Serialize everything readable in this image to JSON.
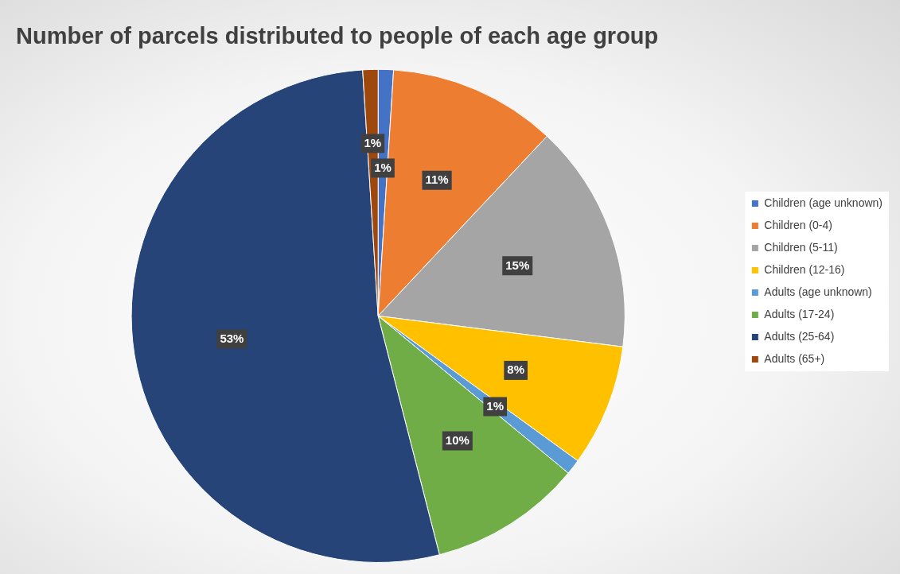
{
  "chart_data": {
    "type": "pie",
    "title": "Number of parcels distributed to people of each age group",
    "categories": [
      "Children (age unknown)",
      "Children (0-4)",
      "Children (5-11)",
      "Children (12-16)",
      "Adults (age unknown)",
      "Adults (17-24)",
      "Adults (25-64)",
      "Adults (65+)"
    ],
    "values": [
      1,
      11,
      15,
      8,
      1,
      10,
      53,
      1
    ],
    "colors": [
      "#4472c4",
      "#ed7d31",
      "#a5a5a5",
      "#ffc000",
      "#5b9bd5",
      "#70ad47",
      "#264478",
      "#9e480e"
    ],
    "value_labels": [
      "1%",
      "11%",
      "15%",
      "8%",
      "1%",
      "10%",
      "53%",
      "1%"
    ],
    "legend": "right"
  }
}
